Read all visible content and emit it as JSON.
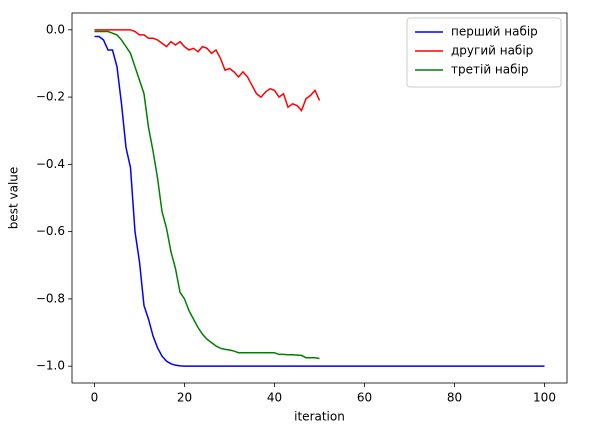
{
  "chart_data": {
    "type": "line",
    "xlabel": "iteration",
    "ylabel": "best value",
    "x": [
      0,
      1,
      2,
      3,
      4,
      5,
      6,
      7,
      8,
      9,
      10,
      11,
      12,
      13,
      14,
      15,
      16,
      17,
      18,
      19,
      20,
      21,
      22,
      23,
      24,
      25,
      26,
      27,
      28,
      29,
      30,
      31,
      32,
      33,
      34,
      35,
      36,
      37,
      38,
      39,
      40,
      41,
      42,
      43,
      44,
      45,
      46,
      47,
      48,
      49,
      50,
      51,
      52,
      53,
      54,
      55,
      56,
      57,
      58,
      59,
      60,
      61,
      62,
      63,
      64,
      65,
      66,
      67,
      68,
      69,
      70,
      71,
      72,
      73,
      74,
      75,
      76,
      77,
      78,
      79,
      80,
      81,
      82,
      83,
      84,
      85,
      86,
      87,
      88,
      89,
      90,
      91,
      92,
      93,
      94,
      95,
      96,
      97,
      98,
      99,
      100
    ],
    "series": [
      {
        "name": "перший набір",
        "color": "#0000ff",
        "values": [
          -0.02,
          -0.02,
          -0.03,
          -0.06,
          -0.06,
          -0.11,
          -0.22,
          -0.35,
          -0.41,
          -0.6,
          -0.69,
          -0.82,
          -0.86,
          -0.91,
          -0.945,
          -0.97,
          -0.985,
          -0.993,
          -0.997,
          -0.999,
          -1,
          -1,
          -1,
          -1,
          -1,
          -1,
          -1,
          -1,
          -1,
          -1,
          -1,
          -1,
          -1,
          -1,
          -1,
          -1,
          -1,
          -1,
          -1,
          -1,
          -1,
          -1,
          -1,
          -1,
          -1,
          -1,
          -1,
          -1,
          -1,
          -1,
          -1,
          -1,
          -1,
          -1,
          -1,
          -1,
          -1,
          -1,
          -1,
          -1,
          -1,
          -1,
          -1,
          -1,
          -1,
          -1,
          -1,
          -1,
          -1,
          -1,
          -1,
          -1,
          -1,
          -1,
          -1,
          -1,
          -1,
          -1,
          -1,
          -1,
          -1,
          -1,
          -1,
          -1,
          -1,
          -1,
          -1,
          -1,
          -1,
          -1,
          -1,
          -1,
          -1,
          -1,
          -1,
          -1,
          -1,
          -1,
          -1,
          -1,
          -1
        ]
      },
      {
        "name": "другий набір",
        "color": "#ff0000",
        "values": [
          0,
          0,
          0,
          0,
          0,
          0,
          0,
          0,
          0,
          -0.005,
          -0.015,
          -0.015,
          -0.025,
          -0.025,
          -0.03,
          -0.04,
          -0.05,
          -0.035,
          -0.045,
          -0.035,
          -0.05,
          -0.06,
          -0.055,
          -0.065,
          -0.05,
          -0.055,
          -0.07,
          -0.06,
          -0.085,
          -0.12,
          -0.115,
          -0.125,
          -0.14,
          -0.125,
          -0.14,
          -0.165,
          -0.19,
          -0.2,
          -0.185,
          -0.175,
          -0.18,
          -0.2,
          -0.19,
          -0.23,
          -0.22,
          -0.225,
          -0.24,
          -0.205,
          -0.195,
          -0.18,
          -0.21,
          null,
          null,
          null,
          null,
          null,
          null,
          null,
          null,
          null,
          null,
          null,
          null,
          null,
          null,
          null,
          null,
          null,
          null,
          null,
          null,
          null,
          null,
          null,
          null,
          null,
          null,
          null,
          null,
          null,
          null,
          null,
          null,
          null,
          null,
          null,
          null,
          null,
          null,
          null,
          null,
          null,
          null,
          null,
          null,
          null,
          null,
          null,
          null,
          null,
          null
        ]
      },
      {
        "name": "третій набір",
        "color": "#008000",
        "values": [
          -0.005,
          -0.005,
          -0.005,
          -0.005,
          -0.01,
          -0.015,
          -0.03,
          -0.05,
          -0.07,
          -0.11,
          -0.15,
          -0.19,
          -0.29,
          -0.36,
          -0.44,
          -0.54,
          -0.59,
          -0.66,
          -0.71,
          -0.78,
          -0.8,
          -0.835,
          -0.86,
          -0.885,
          -0.905,
          -0.92,
          -0.93,
          -0.94,
          -0.947,
          -0.95,
          -0.952,
          -0.955,
          -0.96,
          -0.96,
          -0.96,
          -0.96,
          -0.96,
          -0.96,
          -0.96,
          -0.96,
          -0.96,
          -0.965,
          -0.965,
          -0.966,
          -0.966,
          -0.967,
          -0.968,
          -0.975,
          -0.975,
          -0.975,
          -0.977,
          null,
          null,
          null,
          null,
          null,
          null,
          null,
          null,
          null,
          null,
          null,
          null,
          null,
          null,
          null,
          null,
          null,
          null,
          null,
          null,
          null,
          null,
          null,
          null,
          null,
          null,
          null,
          null,
          null,
          null,
          null,
          null,
          null,
          null,
          null,
          null,
          null,
          null,
          null,
          null,
          null,
          null,
          null,
          null,
          null,
          null,
          null,
          null,
          null,
          null
        ]
      }
    ],
    "xlim": [
      -5,
      105
    ],
    "xticks": [
      0,
      20,
      40,
      60,
      80,
      100
    ],
    "ylim": [
      -1.05,
      0.05
    ],
    "yticks": [
      {
        "value": -1.0,
        "label": "−1.0"
      },
      {
        "value": -0.8,
        "label": "−0.8"
      },
      {
        "value": -0.6,
        "label": "−0.6"
      },
      {
        "value": -0.4,
        "label": "−0.4"
      },
      {
        "value": -0.2,
        "label": "−0.2"
      },
      {
        "value": 0,
        "label": "0.0"
      }
    ],
    "legend": "upper right"
  }
}
